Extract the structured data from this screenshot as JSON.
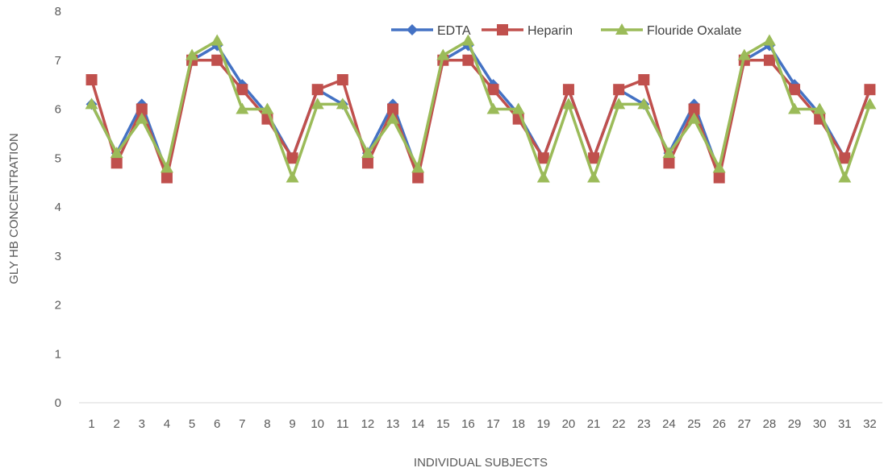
{
  "chart_data": {
    "type": "line",
    "title": "",
    "xlabel": "INDIVIDUAL SUBJECTS",
    "ylabel": "GLY HB CONCENTRATION",
    "ylim": [
      0,
      8
    ],
    "yticks": [
      0,
      1,
      2,
      3,
      4,
      5,
      6,
      7,
      8
    ],
    "categories": [
      "1",
      "2",
      "3",
      "4",
      "5",
      "6",
      "7",
      "8",
      "9",
      "10",
      "11",
      "12",
      "13",
      "14",
      "15",
      "16",
      "17",
      "18",
      "19",
      "20",
      "21",
      "22",
      "23",
      "24",
      "25",
      "26",
      "27",
      "28",
      "29",
      "30",
      "31",
      "32"
    ],
    "grid": false,
    "legend_position": "top-right",
    "series": [
      {
        "name": "EDTA",
        "color": "#4472C4",
        "marker": "diamond",
        "values": [
          6.1,
          5.1,
          6.1,
          4.7,
          7.0,
          7.3,
          6.5,
          5.9,
          5.0,
          6.4,
          6.1,
          5.1,
          6.1,
          4.7,
          7.0,
          7.3,
          6.5,
          5.9,
          5.0,
          6.4,
          5.0,
          6.4,
          6.1,
          5.1,
          6.1,
          4.7,
          7.0,
          7.3,
          6.5,
          5.9,
          5.0,
          6.4
        ]
      },
      {
        "name": "Heparin",
        "color": "#C0504D",
        "marker": "square",
        "values": [
          6.6,
          4.9,
          6.0,
          4.6,
          7.0,
          7.0,
          6.4,
          5.8,
          5.0,
          6.4,
          6.6,
          4.9,
          6.0,
          4.6,
          7.0,
          7.0,
          6.4,
          5.8,
          5.0,
          6.4,
          5.0,
          6.4,
          6.6,
          4.9,
          6.0,
          4.6,
          7.0,
          7.0,
          6.4,
          5.8,
          5.0,
          6.4
        ]
      },
      {
        "name": "Flouride Oxalate",
        "color": "#9BBB59",
        "marker": "triangle",
        "values": [
          6.1,
          5.1,
          5.8,
          4.8,
          7.1,
          7.4,
          6.0,
          6.0,
          4.6,
          6.1,
          6.1,
          5.1,
          5.8,
          4.8,
          7.1,
          7.4,
          6.0,
          6.0,
          4.6,
          6.1,
          4.6,
          6.1,
          6.1,
          5.1,
          5.8,
          4.8,
          7.1,
          7.4,
          6.0,
          6.0,
          4.6,
          6.1
        ]
      }
    ]
  }
}
